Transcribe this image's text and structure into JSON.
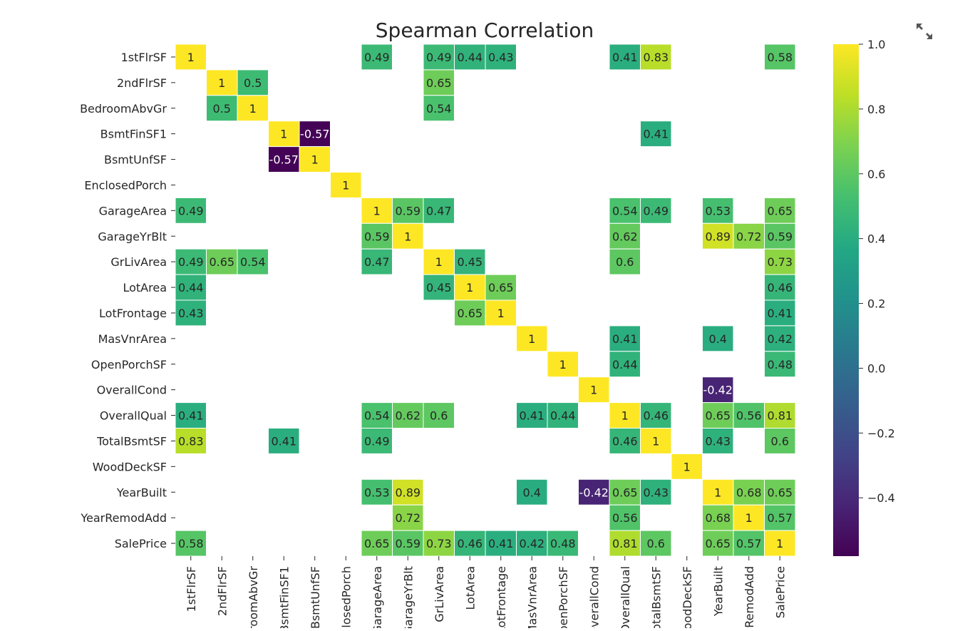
{
  "chart_data": {
    "type": "heatmap",
    "title": "Spearman Correlation",
    "labels": [
      "1stFlrSF",
      "2ndFlrSF",
      "BedroomAbvGr",
      "BsmtFinSF1",
      "BsmtUnfSF",
      "EnclosedPorch",
      "GarageArea",
      "GarageYrBlt",
      "GrLivArea",
      "LotArea",
      "LotFrontage",
      "MasVnrArea",
      "OpenPorchSF",
      "OverallCond",
      "OverallQual",
      "TotalBsmtSF",
      "WoodDeckSF",
      "YearBuilt",
      "YearRemodAdd",
      "SalePrice"
    ],
    "values": [
      [
        1,
        null,
        null,
        null,
        null,
        null,
        0.49,
        null,
        0.49,
        0.44,
        0.43,
        null,
        null,
        null,
        0.41,
        0.83,
        null,
        null,
        null,
        0.58
      ],
      [
        null,
        1,
        0.5,
        null,
        null,
        null,
        null,
        null,
        0.65,
        null,
        null,
        null,
        null,
        null,
        null,
        null,
        null,
        null,
        null,
        null
      ],
      [
        null,
        0.5,
        1,
        null,
        null,
        null,
        null,
        null,
        0.54,
        null,
        null,
        null,
        null,
        null,
        null,
        null,
        null,
        null,
        null,
        null
      ],
      [
        null,
        null,
        null,
        1,
        -0.57,
        null,
        null,
        null,
        null,
        null,
        null,
        null,
        null,
        null,
        null,
        0.41,
        null,
        null,
        null,
        null
      ],
      [
        null,
        null,
        null,
        -0.57,
        1,
        null,
        null,
        null,
        null,
        null,
        null,
        null,
        null,
        null,
        null,
        null,
        null,
        null,
        null,
        null
      ],
      [
        null,
        null,
        null,
        null,
        null,
        1,
        null,
        null,
        null,
        null,
        null,
        null,
        null,
        null,
        null,
        null,
        null,
        null,
        null,
        null
      ],
      [
        0.49,
        null,
        null,
        null,
        null,
        null,
        1,
        0.59,
        0.47,
        null,
        null,
        null,
        null,
        null,
        0.54,
        0.49,
        null,
        0.53,
        null,
        0.65
      ],
      [
        null,
        null,
        null,
        null,
        null,
        null,
        0.59,
        1,
        null,
        null,
        null,
        null,
        null,
        null,
        0.62,
        null,
        null,
        0.89,
        0.72,
        0.59
      ],
      [
        0.49,
        0.65,
        0.54,
        null,
        null,
        null,
        0.47,
        null,
        1,
        0.45,
        null,
        null,
        null,
        null,
        0.6,
        null,
        null,
        null,
        null,
        0.73
      ],
      [
        0.44,
        null,
        null,
        null,
        null,
        null,
        null,
        null,
        0.45,
        1,
        0.65,
        null,
        null,
        null,
        null,
        null,
        null,
        null,
        null,
        0.46
      ],
      [
        0.43,
        null,
        null,
        null,
        null,
        null,
        null,
        null,
        null,
        0.65,
        1,
        null,
        null,
        null,
        null,
        null,
        null,
        null,
        null,
        0.41
      ],
      [
        null,
        null,
        null,
        null,
        null,
        null,
        null,
        null,
        null,
        null,
        null,
        1,
        null,
        null,
        0.41,
        null,
        null,
        0.4,
        null,
        0.42
      ],
      [
        null,
        null,
        null,
        null,
        null,
        null,
        null,
        null,
        null,
        null,
        null,
        null,
        1,
        null,
        0.44,
        null,
        null,
        null,
        null,
        0.48
      ],
      [
        null,
        null,
        null,
        null,
        null,
        null,
        null,
        null,
        null,
        null,
        null,
        null,
        null,
        1,
        null,
        null,
        null,
        -0.42,
        null,
        null
      ],
      [
        0.41,
        null,
        null,
        null,
        null,
        null,
        0.54,
        0.62,
        0.6,
        null,
        null,
        0.41,
        0.44,
        null,
        1,
        0.46,
        null,
        0.65,
        0.56,
        0.81
      ],
      [
        0.83,
        null,
        null,
        0.41,
        null,
        null,
        0.49,
        null,
        null,
        null,
        null,
        null,
        null,
        null,
        0.46,
        1,
        null,
        0.43,
        null,
        0.6
      ],
      [
        null,
        null,
        null,
        null,
        null,
        null,
        null,
        null,
        null,
        null,
        null,
        null,
        null,
        null,
        null,
        null,
        1,
        null,
        null,
        null
      ],
      [
        null,
        null,
        null,
        null,
        null,
        null,
        0.53,
        0.89,
        null,
        null,
        null,
        0.4,
        null,
        -0.42,
        0.65,
        0.43,
        null,
        1,
        0.68,
        0.65
      ],
      [
        null,
        null,
        null,
        null,
        null,
        null,
        null,
        0.72,
        null,
        null,
        null,
        null,
        null,
        null,
        0.56,
        null,
        null,
        0.68,
        1,
        0.57
      ],
      [
        0.58,
        null,
        null,
        null,
        null,
        null,
        0.65,
        0.59,
        0.73,
        0.46,
        0.41,
        0.42,
        0.48,
        null,
        0.81,
        0.6,
        null,
        0.65,
        0.57,
        1
      ]
    ],
    "colormap": "viridis",
    "colorbar": {
      "vmin": -0.58,
      "vmax": 1.0,
      "ticks": [
        1.0,
        0.8,
        0.6,
        0.4,
        0.2,
        0.0,
        -0.2,
        -0.4
      ],
      "tick_labels": [
        "1.0",
        "0.8",
        "0.6",
        "0.4",
        "0.2",
        "0.0",
        "−0.2",
        "−0.4"
      ]
    },
    "annotate": true,
    "grid": false
  },
  "toolbar": {
    "expand_icon": "expand-icon"
  }
}
